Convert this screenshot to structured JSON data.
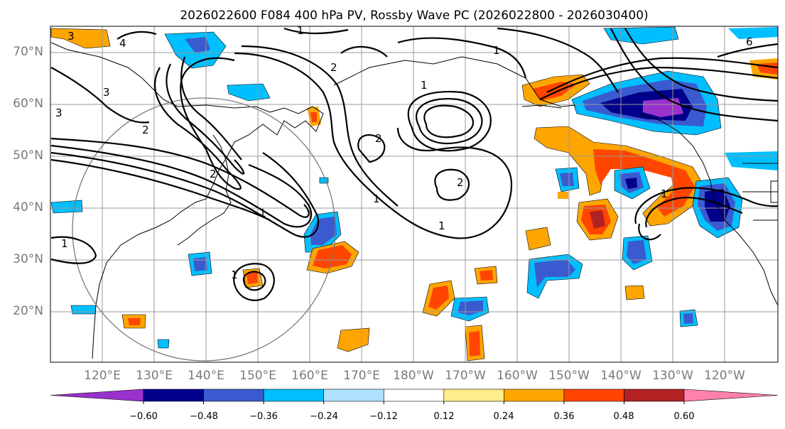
{
  "title": "2026022600 F084 400 hPa PV, Rossby Wave PC (2026022800 - 2026030400)",
  "lat_labels": [
    "70°N",
    "60°N",
    "50°N",
    "40°N",
    "30°N",
    "20°N"
  ],
  "lon_labels": [
    "120°E",
    "130°E",
    "140°E",
    "150°E",
    "160°E",
    "170°E",
    "180°W",
    "170°W",
    "160°W",
    "150°W",
    "140°W",
    "130°W",
    "120°W"
  ],
  "contour_labels": [
    "3",
    "4",
    "1",
    "1",
    "1",
    "2",
    "3",
    "3",
    "2",
    "1",
    "2",
    "1",
    "1",
    "2",
    "1",
    "2",
    "6",
    "1",
    "1"
  ],
  "colorbar": {
    "tick_labels": [
      "−0.60",
      "−0.48",
      "−0.36",
      "−0.24",
      "−0.12",
      "0.12",
      "0.24",
      "0.36",
      "0.48",
      "0.60"
    ],
    "colors": [
      "#9932cc",
      "#00008b",
      "#3a5bcf",
      "#00bfff",
      "#b0e2ff",
      "#ffffff",
      "#ffec8b",
      "#ffa500",
      "#ff4500",
      "#b22222",
      "#ff82ab"
    ]
  },
  "colors": {
    "strong_negative": "#9932cc",
    "negative_3": "#00008b",
    "negative_2": "#3a5bcf",
    "negative_1": "#00bfff",
    "weak_negative": "#b0e2ff",
    "neutral": "#ffffff",
    "weak_positive": "#ffec8b",
    "positive_1": "#ffa500",
    "positive_2": "#ff4500",
    "positive_3": "#b22222",
    "strong_positive": "#ff82ab"
  }
}
